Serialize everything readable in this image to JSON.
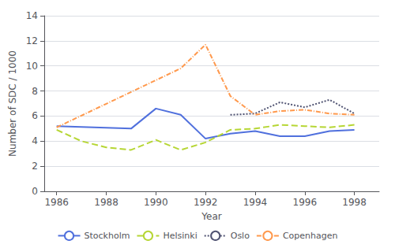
{
  "chart_data": {
    "type": "line",
    "xlabel": "Year",
    "ylabel": "Number of SDC / 1000",
    "series": [
      {
        "name": "Stockholm",
        "line_style": "solid",
        "x": [
          1986,
          1989,
          1990,
          1991,
          1992,
          1993,
          1994,
          1995,
          1996,
          1997,
          1998
        ],
        "values": [
          5.2,
          5.0,
          6.6,
          6.1,
          4.2,
          4.6,
          4.8,
          4.4,
          4.4,
          4.8,
          4.9
        ]
      },
      {
        "name": "Helsinki",
        "line_style": "dashed",
        "x": [
          1986,
          1987,
          1988,
          1989,
          1990,
          1991,
          1992,
          1993,
          1994,
          1995,
          1996,
          1997,
          1998
        ],
        "values": [
          4.9,
          4.0,
          3.5,
          3.3,
          4.1,
          3.3,
          3.9,
          4.9,
          5.0,
          5.3,
          5.2,
          5.1,
          5.3
        ]
      },
      {
        "name": "Oslo",
        "line_style": "dotted",
        "x": [
          1993,
          1994,
          1995,
          1996,
          1997,
          1998
        ],
        "values": [
          6.1,
          6.2,
          7.1,
          6.7,
          7.3,
          6.2
        ]
      },
      {
        "name": "Copenhagen",
        "line_style": "dashdot",
        "x": [
          1986,
          1991,
          1992,
          1993,
          1994,
          1995,
          1996,
          1997,
          1998
        ],
        "values": [
          5.1,
          9.8,
          11.7,
          7.6,
          6.1,
          6.4,
          6.5,
          6.2,
          6.1
        ]
      }
    ],
    "xlim": [
      1985.5,
      1999.0
    ],
    "xticks": [
      1986,
      1988,
      1990,
      1992,
      1994,
      1996,
      1998
    ],
    "ylim": [
      0,
      14
    ],
    "yticks": [
      0,
      2,
      4,
      6,
      8,
      10,
      12,
      14
    ],
    "grid": true,
    "legend": "bottom"
  }
}
